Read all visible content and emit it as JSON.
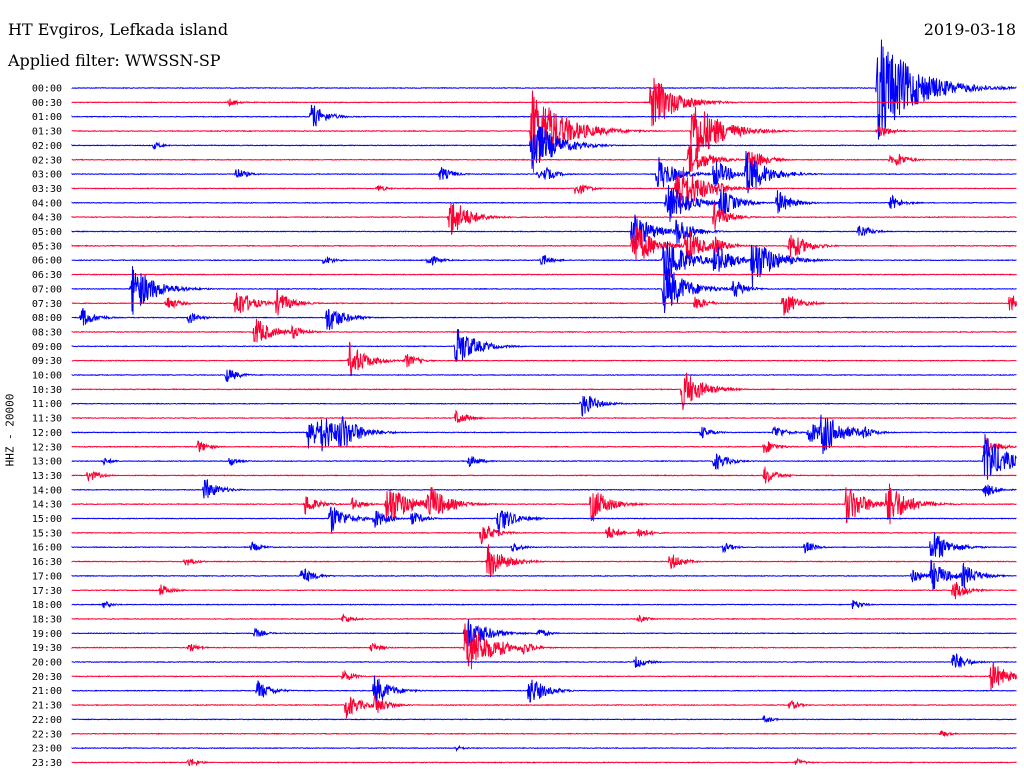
{
  "header": {
    "station": "HT Evgiros, Lefkada island",
    "filter": "Applied filter: WWSSN-SP",
    "date": "2019-03-18"
  },
  "chart_data": {
    "type": "line",
    "title": "HT Evgiros, Lefkada island",
    "subtitle": "Applied filter: WWSSN-SP",
    "date": "2019-03-18",
    "ylabel": "HHZ - 20000",
    "xlabel": "",
    "row_labels": [
      "00:00",
      "00:30",
      "01:00",
      "01:30",
      "02:00",
      "02:30",
      "03:00",
      "03:30",
      "04:00",
      "04:30",
      "05:00",
      "05:30",
      "06:00",
      "06:30",
      "07:00",
      "07:30",
      "08:00",
      "08:30",
      "09:00",
      "09:30",
      "10:00",
      "10:30",
      "11:00",
      "11:30",
      "12:00",
      "12:30",
      "13:00",
      "13:30",
      "14:00",
      "14:30",
      "15:00",
      "15:30",
      "16:00",
      "16:30",
      "17:00",
      "17:30",
      "18:00",
      "18:30",
      "19:00",
      "19:30",
      "20:00",
      "20:30",
      "21:00",
      "21:30",
      "22:00",
      "22:30",
      "23:00",
      "23:30"
    ],
    "x_range": [
      0,
      30
    ],
    "x_units": "minutes after row start",
    "colors": {
      "even": "#0000ff",
      "odd": "#ff0033"
    },
    "grid": false,
    "events": [
      {
        "row": 0,
        "minute": 25.6,
        "amp": 4.0
      },
      {
        "row": 1,
        "minute": 18.4,
        "amp": 2.2
      },
      {
        "row": 1,
        "minute": 5.0,
        "amp": 0.3
      },
      {
        "row": 2,
        "minute": 7.6,
        "amp": 1.0
      },
      {
        "row": 3,
        "minute": 14.6,
        "amp": 3.2
      },
      {
        "row": 3,
        "minute": 19.7,
        "amp": 2.6
      },
      {
        "row": 3,
        "minute": 25.6,
        "amp": 0.6
      },
      {
        "row": 4,
        "minute": 14.6,
        "amp": 2.2
      },
      {
        "row": 4,
        "minute": 2.6,
        "amp": 0.3
      },
      {
        "row": 5,
        "minute": 26.0,
        "amp": 0.3
      },
      {
        "row": 6,
        "minute": 14.8,
        "amp": 0.3
      },
      {
        "row": 7,
        "minute": 9.7,
        "amp": 0.3
      },
      {
        "row": 9,
        "minute": 12.0,
        "amp": 1.6
      },
      {
        "row": 10,
        "minute": 17.8,
        "amp": 1.6
      },
      {
        "row": 10,
        "minute": 25.0,
        "amp": 0.6
      },
      {
        "row": 11,
        "minute": 17.8,
        "amp": 1.8
      },
      {
        "row": 11,
        "minute": 19.5,
        "amp": 1.4
      },
      {
        "row": 11,
        "minute": 20.4,
        "amp": 0.8
      },
      {
        "row": 12,
        "minute": 18.8,
        "amp": 2.0
      },
      {
        "row": 12,
        "minute": 20.4,
        "amp": 1.4
      },
      {
        "row": 12,
        "minute": 21.6,
        "amp": 2.0
      },
      {
        "row": 12,
        "minute": 11.3,
        "amp": 0.5
      },
      {
        "row": 12,
        "minute": 8.0,
        "amp": 0.4
      },
      {
        "row": 12,
        "minute": 14.9,
        "amp": 0.5
      },
      {
        "row": 14,
        "minute": 1.9,
        "amp": 2.0
      },
      {
        "row": 14,
        "minute": 18.8,
        "amp": 2.0
      },
      {
        "row": 14,
        "minute": 21.0,
        "amp": 0.8
      },
      {
        "row": 15,
        "minute": 5.2,
        "amp": 1.2
      },
      {
        "row": 15,
        "minute": 6.5,
        "amp": 1.0
      },
      {
        "row": 15,
        "minute": 19.8,
        "amp": 0.6
      },
      {
        "row": 15,
        "minute": 22.6,
        "amp": 1.0
      },
      {
        "row": 15,
        "minute": 29.8,
        "amp": 0.8
      },
      {
        "row": 15,
        "minute": 3.0,
        "amp": 0.6
      },
      {
        "row": 16,
        "minute": 0.3,
        "amp": 0.8
      },
      {
        "row": 16,
        "minute": 8.1,
        "amp": 1.2
      },
      {
        "row": 16,
        "minute": 3.7,
        "amp": 0.5
      },
      {
        "row": 17,
        "minute": 5.8,
        "amp": 1.2
      },
      {
        "row": 17,
        "minute": 7.0,
        "amp": 0.6
      },
      {
        "row": 18,
        "minute": 12.2,
        "amp": 1.6
      },
      {
        "row": 19,
        "minute": 8.8,
        "amp": 1.4
      },
      {
        "row": 19,
        "minute": 10.6,
        "amp": 0.6
      },
      {
        "row": 20,
        "minute": 4.9,
        "amp": 0.6
      },
      {
        "row": 21,
        "minute": 19.4,
        "amp": 1.6
      },
      {
        "row": 22,
        "minute": 16.2,
        "amp": 1.0
      },
      {
        "row": 23,
        "minute": 12.2,
        "amp": 0.6
      },
      {
        "row": 24,
        "minute": 7.5,
        "amp": 1.4
      },
      {
        "row": 24,
        "minute": 7.9,
        "amp": 1.6
      },
      {
        "row": 24,
        "minute": 8.5,
        "amp": 1.6
      },
      {
        "row": 24,
        "minute": 20.0,
        "amp": 0.5
      },
      {
        "row": 24,
        "minute": 22.3,
        "amp": 0.6
      },
      {
        "row": 24,
        "minute": 23.4,
        "amp": 1.0
      },
      {
        "row": 24,
        "minute": 23.8,
        "amp": 1.8
      },
      {
        "row": 24,
        "minute": 25.1,
        "amp": 0.6
      },
      {
        "row": 25,
        "minute": 4.0,
        "amp": 0.5
      },
      {
        "row": 25,
        "minute": 22.0,
        "amp": 0.6
      },
      {
        "row": 25,
        "minute": 29.0,
        "amp": 0.8
      },
      {
        "row": 26,
        "minute": 29.0,
        "amp": 2.0
      },
      {
        "row": 26,
        "minute": 20.4,
        "amp": 0.8
      },
      {
        "row": 26,
        "minute": 12.6,
        "amp": 0.5
      },
      {
        "row": 26,
        "minute": 5.0,
        "amp": 0.4
      },
      {
        "row": 26,
        "minute": 1.0,
        "amp": 0.3
      },
      {
        "row": 27,
        "minute": 22.0,
        "amp": 0.7
      },
      {
        "row": 27,
        "minute": 0.5,
        "amp": 0.5
      },
      {
        "row": 28,
        "minute": 4.2,
        "amp": 0.9
      },
      {
        "row": 28,
        "minute": 29.0,
        "amp": 0.6
      },
      {
        "row": 29,
        "minute": 10.0,
        "amp": 1.8
      },
      {
        "row": 29,
        "minute": 11.3,
        "amp": 1.6
      },
      {
        "row": 29,
        "minute": 16.5,
        "amp": 1.4
      },
      {
        "row": 29,
        "minute": 24.6,
        "amp": 1.6
      },
      {
        "row": 29,
        "minute": 25.9,
        "amp": 1.8
      },
      {
        "row": 29,
        "minute": 7.4,
        "amp": 0.8
      },
      {
        "row": 29,
        "minute": 8.9,
        "amp": 0.5
      },
      {
        "row": 30,
        "minute": 8.2,
        "amp": 1.2
      },
      {
        "row": 30,
        "minute": 9.6,
        "amp": 0.8
      },
      {
        "row": 30,
        "minute": 13.5,
        "amp": 1.2
      },
      {
        "row": 30,
        "minute": 10.8,
        "amp": 0.6
      },
      {
        "row": 31,
        "minute": 13.0,
        "amp": 0.9
      },
      {
        "row": 31,
        "minute": 17.0,
        "amp": 0.6
      },
      {
        "row": 31,
        "minute": 18.0,
        "amp": 0.5
      },
      {
        "row": 32,
        "minute": 27.3,
        "amp": 1.4
      },
      {
        "row": 32,
        "minute": 23.3,
        "amp": 0.5
      },
      {
        "row": 32,
        "minute": 20.7,
        "amp": 0.4
      },
      {
        "row": 32,
        "minute": 5.7,
        "amp": 0.4
      },
      {
        "row": 32,
        "minute": 14.0,
        "amp": 0.4
      },
      {
        "row": 33,
        "minute": 13.2,
        "amp": 1.4
      },
      {
        "row": 33,
        "minute": 3.6,
        "amp": 0.4
      },
      {
        "row": 33,
        "minute": 19.0,
        "amp": 0.7
      },
      {
        "row": 34,
        "minute": 27.3,
        "amp": 1.2
      },
      {
        "row": 34,
        "minute": 28.3,
        "amp": 1.0
      },
      {
        "row": 34,
        "minute": 7.3,
        "amp": 0.7
      },
      {
        "row": 34,
        "minute": 26.7,
        "amp": 0.6
      },
      {
        "row": 35,
        "minute": 28.0,
        "amp": 0.8
      },
      {
        "row": 35,
        "minute": 2.8,
        "amp": 0.5
      },
      {
        "row": 36,
        "minute": 24.8,
        "amp": 0.4
      },
      {
        "row": 36,
        "minute": 1.0,
        "amp": 0.3
      },
      {
        "row": 37,
        "minute": 8.6,
        "amp": 0.4
      },
      {
        "row": 37,
        "minute": 18.0,
        "amp": 0.3
      },
      {
        "row": 38,
        "minute": 12.5,
        "amp": 1.6
      },
      {
        "row": 38,
        "minute": 5.8,
        "amp": 0.4
      },
      {
        "row": 38,
        "minute": 14.8,
        "amp": 0.4
      },
      {
        "row": 39,
        "minute": 12.5,
        "amp": 2.2
      },
      {
        "row": 39,
        "minute": 13.5,
        "amp": 0.8
      },
      {
        "row": 39,
        "minute": 14.3,
        "amp": 0.6
      },
      {
        "row": 39,
        "minute": 3.7,
        "amp": 0.4
      },
      {
        "row": 39,
        "minute": 9.5,
        "amp": 0.4
      },
      {
        "row": 40,
        "minute": 28.0,
        "amp": 0.8
      },
      {
        "row": 40,
        "minute": 17.9,
        "amp": 0.5
      },
      {
        "row": 41,
        "minute": 29.2,
        "amp": 1.2
      },
      {
        "row": 41,
        "minute": 8.6,
        "amp": 0.5
      },
      {
        "row": 42,
        "minute": 9.6,
        "amp": 1.2
      },
      {
        "row": 42,
        "minute": 14.5,
        "amp": 1.2
      },
      {
        "row": 42,
        "minute": 5.9,
        "amp": 0.8
      },
      {
        "row": 43,
        "minute": 8.7,
        "amp": 1.0
      },
      {
        "row": 43,
        "minute": 9.6,
        "amp": 0.8
      },
      {
        "row": 43,
        "minute": 22.8,
        "amp": 0.4
      },
      {
        "row": 44,
        "minute": 22.0,
        "amp": 0.3
      },
      {
        "row": 45,
        "minute": 27.6,
        "amp": 0.3
      },
      {
        "row": 46,
        "minute": 12.2,
        "amp": 0.2
      },
      {
        "row": 47,
        "minute": 3.7,
        "amp": 0.4
      },
      {
        "row": 47,
        "minute": 23.0,
        "amp": 0.3
      },
      {
        "row": 6,
        "minute": 18.6,
        "amp": 1.4
      },
      {
        "row": 6,
        "minute": 20.4,
        "amp": 1.2
      },
      {
        "row": 6,
        "minute": 21.4,
        "amp": 1.8
      },
      {
        "row": 6,
        "minute": 5.2,
        "amp": 0.5
      },
      {
        "row": 6,
        "minute": 11.7,
        "amp": 0.6
      },
      {
        "row": 6,
        "minute": 15.0,
        "amp": 0.6
      },
      {
        "row": 5,
        "minute": 19.6,
        "amp": 1.4
      },
      {
        "row": 5,
        "minute": 21.5,
        "amp": 1.0
      },
      {
        "row": 5,
        "minute": 26.2,
        "amp": 0.6
      },
      {
        "row": 7,
        "minute": 19.2,
        "amp": 2.2
      },
      {
        "row": 7,
        "minute": 16.0,
        "amp": 0.6
      },
      {
        "row": 7,
        "minute": 20.5,
        "amp": 0.6
      },
      {
        "row": 8,
        "minute": 18.9,
        "amp": 1.8
      },
      {
        "row": 8,
        "minute": 20.6,
        "amp": 1.2
      },
      {
        "row": 8,
        "minute": 22.4,
        "amp": 1.0
      },
      {
        "row": 8,
        "minute": 26.0,
        "amp": 0.6
      },
      {
        "row": 9,
        "minute": 20.4,
        "amp": 1.0
      },
      {
        "row": 10,
        "minute": 19.2,
        "amp": 1.2
      },
      {
        "row": 11,
        "minute": 22.8,
        "amp": 1.2
      }
    ]
  }
}
